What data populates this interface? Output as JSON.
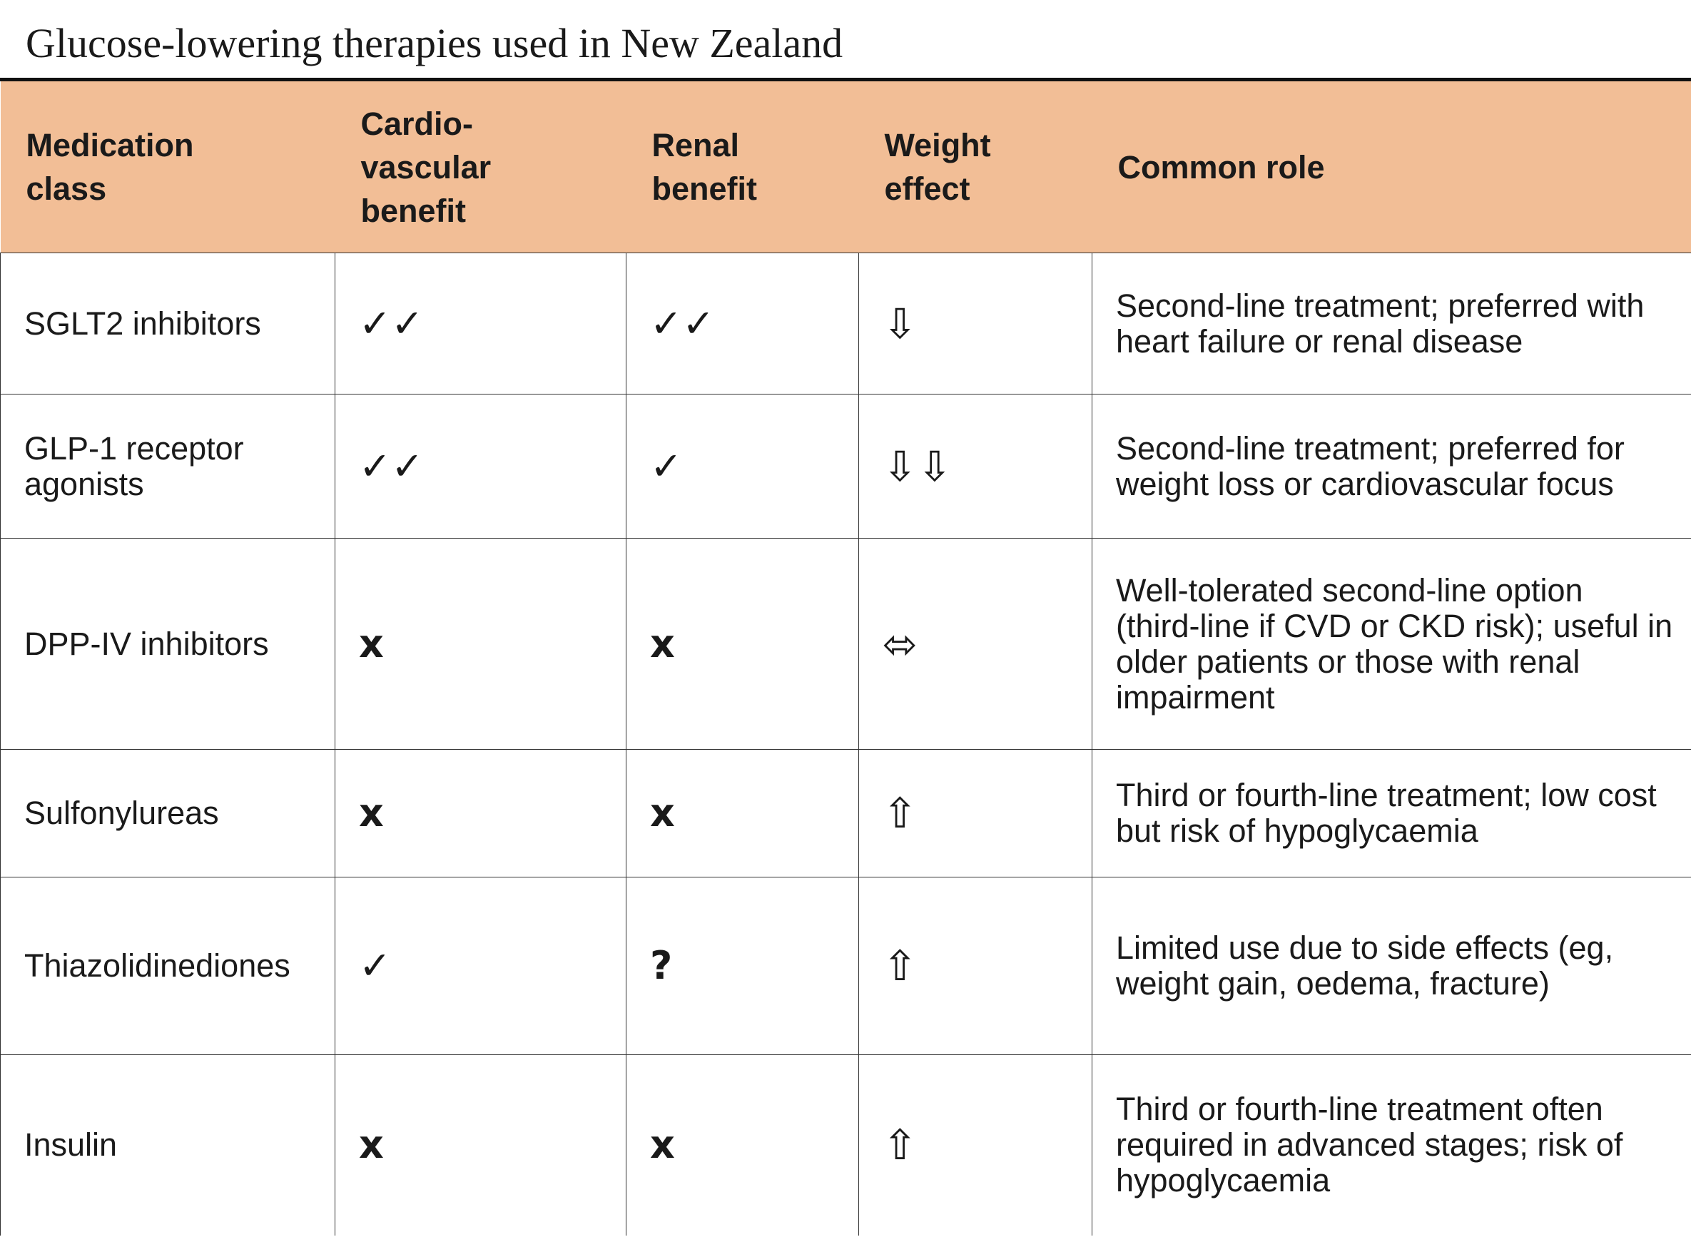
{
  "header": {
    "title": "Glucose-lowering therapies used in New Zealand"
  },
  "table": {
    "columns": [
      "Medication class",
      "Cardio-vascular benefit",
      "Renal benefit",
      "Weight effect",
      "Common role"
    ],
    "rows": [
      [
        "SGLT2 inhibitors",
        "✓✓",
        "✓✓",
        "⇩",
        "Second-line treatment; preferred with heart failure or renal disease"
      ],
      [
        "GLP-1 receptor agonists",
        "✓✓",
        "✓",
        "⇩⇩",
        "Second-line treatment; preferred for weight loss or cardiovascular focus"
      ],
      [
        "DPP-IV inhibitors",
        "x",
        "x",
        "⬄",
        "Well-tolerated second-line option (third-line if CVD or CKD risk); useful in older patients or those with renal impairment"
      ],
      [
        "Sulfonylureas",
        "x",
        "x",
        "⇧",
        "Third or fourth-line treatment; low cost but risk of hypoglycaemia"
      ],
      [
        "Thiazolidinediones",
        "✓",
        "?",
        "⇧",
        "Limited use due to side effects (eg, weight gain, oedema, fracture)"
      ],
      [
        "Insulin",
        "x",
        "x",
        "⇧",
        "Third or fourth-line treatment often required in advanced stages; risk of hypoglycaemia"
      ]
    ]
  }
}
